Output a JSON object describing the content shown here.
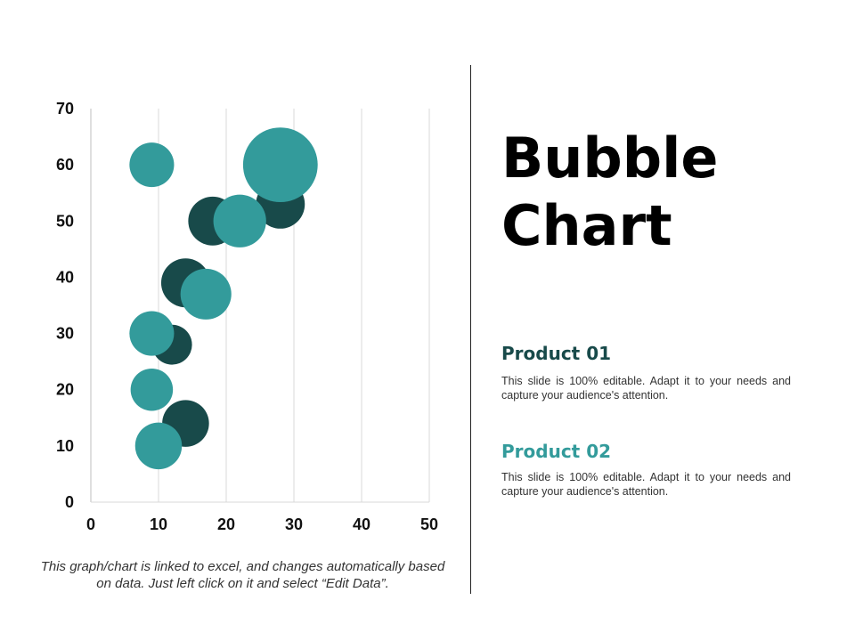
{
  "chart_data": {
    "type": "bubble",
    "x_ticks": [
      "0",
      "10",
      "20",
      "30",
      "40",
      "50"
    ],
    "y_ticks": [
      "0",
      "10",
      "20",
      "30",
      "40",
      "50",
      "60",
      "70"
    ],
    "xlim": [
      0,
      50
    ],
    "ylim": [
      0,
      70
    ],
    "grid": "vertical",
    "series": [
      {
        "name": "Product 01",
        "color": "#184a4a",
        "points": [
          {
            "x": 18,
            "y": 50,
            "size": 6
          },
          {
            "x": 14,
            "y": 39,
            "size": 6
          },
          {
            "x": 28,
            "y": 53,
            "size": 6
          },
          {
            "x": 12,
            "y": 28,
            "size": 4
          },
          {
            "x": 14,
            "y": 14,
            "size": 5.5
          }
        ]
      },
      {
        "name": "Product 02",
        "color": "#339b9b",
        "points": [
          {
            "x": 9,
            "y": 60,
            "size": 5
          },
          {
            "x": 28,
            "y": 60,
            "size": 14
          },
          {
            "x": 22,
            "y": 50,
            "size": 7
          },
          {
            "x": 17,
            "y": 37,
            "size": 6.5
          },
          {
            "x": 9,
            "y": 30,
            "size": 5
          },
          {
            "x": 9,
            "y": 20,
            "size": 4.5
          },
          {
            "x": 10,
            "y": 10,
            "size": 5.5
          }
        ]
      }
    ]
  },
  "caption": "This graph/chart is linked to excel, and changes automatically based on data. Just left click on it and select “Edit Data”.",
  "title": {
    "line1": "Bubble",
    "line2": "Chart"
  },
  "products": [
    {
      "heading": "Product  01",
      "color": "#184a4a",
      "body": "This slide is 100% editable. Adapt it to your needs and capture your audience's attention."
    },
    {
      "heading": "Product  02",
      "color": "#339b9b",
      "body": "This slide is 100% editable. Adapt it to your needs and capture your audience's attention."
    }
  ]
}
